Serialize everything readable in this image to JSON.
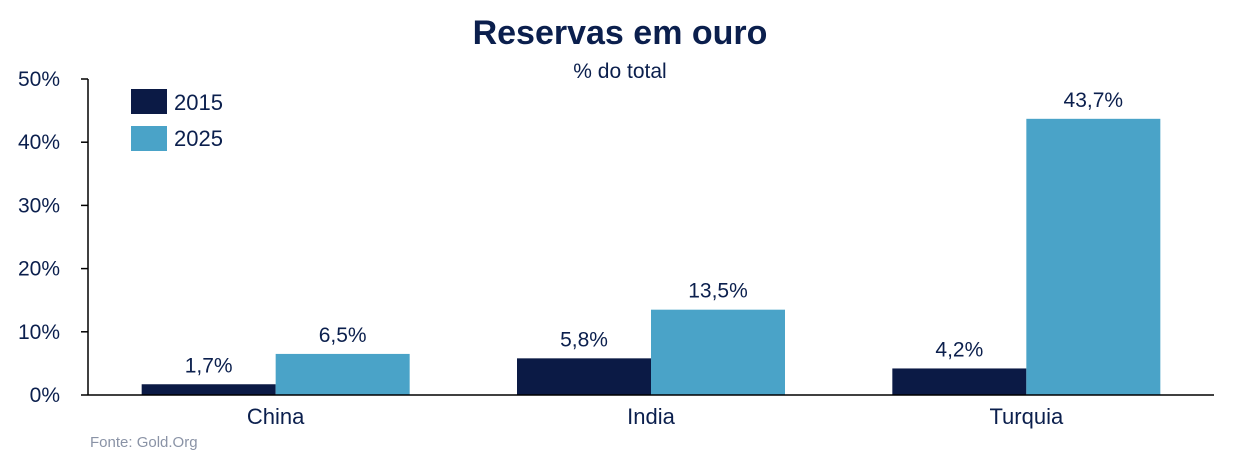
{
  "chart_data": {
    "type": "bar",
    "title": "Reservas em ouro",
    "subtitle": "% do total",
    "categories": [
      "China",
      "India",
      "Turquia"
    ],
    "series": [
      {
        "name": "2015",
        "values": [
          1.7,
          5.8,
          4.2
        ],
        "labels": [
          "1,7%",
          "5,8%",
          "4,2%"
        ],
        "color": "#0b1a45"
      },
      {
        "name": "2025",
        "values": [
          6.5,
          13.5,
          43.7
        ],
        "labels": [
          "6,5%",
          "13,5%",
          "43,7%"
        ],
        "color": "#4aa3c8"
      }
    ],
    "ylim": [
      0,
      50
    ],
    "yticks": [
      0,
      10,
      20,
      30,
      40,
      50
    ],
    "ytick_labels": [
      "0%",
      "10%",
      "20%",
      "30%",
      "40%",
      "50%"
    ],
    "xlabel": "",
    "ylabel": "",
    "grid": false,
    "legend_position": "top-left",
    "source": "Fonte: Gold.Org"
  }
}
